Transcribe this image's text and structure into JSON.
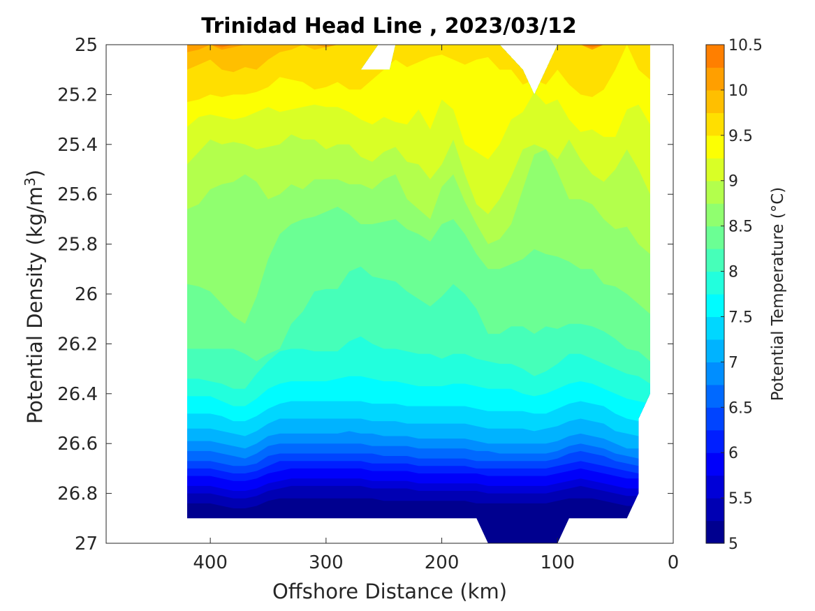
{
  "chart_data": {
    "type": "contourf",
    "title": "Trinidad Head Line , 2023/03/12",
    "xlabel": "Offshore Distance (km)",
    "ylabel": "Potential Density (kg/m³)",
    "ylabel_parts": {
      "main": "Potential Density (kg/m",
      "sup": "3",
      "end": ")"
    },
    "colorbar_label": "Potential Temperature (°C)",
    "xlim": [
      490,
      0
    ],
    "x_reversed": true,
    "ylim": [
      25,
      27
    ],
    "y_reversed": true,
    "xticks": [
      400,
      300,
      200,
      100,
      0
    ],
    "yticks": [
      25,
      25.2,
      25.4,
      25.6,
      25.8,
      26,
      26.2,
      26.4,
      26.6,
      26.8,
      27
    ],
    "colorbar_ticks": [
      5,
      5.5,
      6,
      6.5,
      7,
      7.5,
      8,
      8.5,
      9,
      9.5,
      10,
      10.5
    ],
    "clim": [
      5,
      10.5
    ],
    "levels": [
      5,
      5.25,
      5.5,
      5.75,
      6,
      6.25,
      6.5,
      6.75,
      7,
      7.25,
      7.5,
      7.75,
      8,
      8.25,
      8.5,
      8.75,
      9,
      9.25,
      9.5,
      9.75,
      10,
      10.25,
      10.5
    ],
    "level_colors": [
      "#00008f",
      "#0000b3",
      "#0000d7",
      "#0000fa",
      "#001fff",
      "#0044ff",
      "#0069ff",
      "#008eff",
      "#00b3ff",
      "#00d7ff",
      "#00fcff",
      "#22ffdd",
      "#46ffb9",
      "#6bff94",
      "#90ff6f",
      "#b3ff4c",
      "#d9ff26",
      "#fcff03",
      "#ffdf00",
      "#ffbf00",
      "#ff9f00",
      "#ff7f00",
      "#ff5f00",
      "#ff3f00",
      "#ff1f00",
      "#e60000",
      "#c00000",
      "#a00000",
      "#800000"
    ],
    "x": [
      420,
      410,
      400,
      390,
      380,
      370,
      360,
      350,
      340,
      330,
      320,
      310,
      300,
      290,
      280,
      270,
      260,
      250,
      240,
      230,
      220,
      210,
      200,
      190,
      180,
      170,
      160,
      150,
      140,
      130,
      120,
      110,
      100,
      90,
      80,
      70,
      60,
      50,
      40,
      30,
      20
    ],
    "isotherm_depths": [
      {
        "temperature": 10.25,
        "depths": [
          25.0,
          25.0,
          25.0,
          25.01,
          25.0,
          25.0,
          25.0,
          25.0,
          25.0,
          25.0,
          25.0,
          25.0,
          25.0,
          25.0,
          25.0,
          25.0,
          25.0,
          25.0,
          25.0,
          25.0,
          25.0,
          25.0,
          25.0,
          25.0,
          25.0,
          25.0,
          25.0,
          25.0,
          25.0,
          25.0,
          25.0,
          25.0,
          25.0,
          25.0,
          25.0,
          25.01,
          25.0,
          25.0,
          25.0,
          25.0,
          25.0
        ]
      },
      {
        "temperature": 10.0,
        "depths": [
          25.03,
          25.02,
          25.0,
          25.02,
          25.01,
          25.0,
          25.0,
          25.0,
          25.0,
          25.0,
          25.0,
          25.0,
          25.01,
          25.0,
          25.0,
          25.0,
          25.0,
          25.0,
          25.0,
          25.0,
          25.0,
          25.0,
          25.0,
          25.0,
          25.0,
          25.0,
          25.0,
          25.0,
          25.0,
          25.0,
          25.0,
          25.0,
          25.0,
          25.0,
          25.0,
          25.02,
          25.0,
          25.0,
          25.0,
          25.0,
          25.0
        ]
      },
      {
        "temperature": 9.75,
        "depths": [
          25.1,
          25.08,
          25.06,
          25.1,
          25.11,
          25.09,
          25.1,
          25.06,
          25.03,
          25.02,
          25.0,
          25.02,
          25.01,
          25.0,
          25.0,
          25.0,
          25.0,
          25.0,
          25.0,
          25.0,
          25.0,
          25.0,
          25.0,
          25.0,
          25.0,
          25.0,
          25.0,
          25.0,
          25.0,
          25.0,
          25.0,
          25.0,
          25.0,
          25.0,
          25.0,
          25.0,
          25.0,
          25.0,
          25.0,
          25.0,
          25.0
        ]
      },
      {
        "temperature": 9.5,
        "depths": [
          25.23,
          25.22,
          25.2,
          25.21,
          25.2,
          25.2,
          25.19,
          25.17,
          25.13,
          25.14,
          25.15,
          25.18,
          25.17,
          25.15,
          25.18,
          25.18,
          25.14,
          25.1,
          25.06,
          25.09,
          25.07,
          25.05,
          25.04,
          25.06,
          25.08,
          25.06,
          25.05,
          25.1,
          25.1,
          25.16,
          25.14,
          25.16,
          25.1,
          25.16,
          25.2,
          25.21,
          25.18,
          25.1,
          25.0,
          25.1,
          25.14
        ]
      },
      {
        "temperature": 9.25,
        "depths": [
          25.33,
          25.29,
          25.28,
          25.29,
          25.3,
          25.29,
          25.27,
          25.25,
          25.27,
          25.26,
          25.25,
          25.24,
          25.25,
          25.25,
          25.27,
          25.3,
          25.32,
          25.29,
          25.31,
          25.32,
          25.26,
          25.34,
          25.22,
          25.26,
          25.4,
          25.43,
          25.46,
          25.4,
          25.3,
          25.27,
          25.19,
          25.24,
          25.22,
          25.3,
          25.35,
          25.34,
          25.37,
          25.37,
          25.26,
          25.24,
          25.32
        ]
      },
      {
        "temperature": 9.0,
        "depths": [
          25.48,
          25.43,
          25.38,
          25.4,
          25.39,
          25.4,
          25.42,
          25.41,
          25.4,
          25.36,
          25.38,
          25.38,
          25.42,
          25.4,
          25.4,
          25.45,
          25.47,
          25.43,
          25.41,
          25.47,
          25.48,
          25.54,
          25.48,
          25.38,
          25.52,
          25.64,
          25.68,
          25.62,
          25.53,
          25.42,
          25.4,
          25.42,
          25.46,
          25.38,
          25.46,
          25.52,
          25.55,
          25.5,
          25.42,
          25.5,
          25.6
        ]
      },
      {
        "temperature": 8.75,
        "depths": [
          25.66,
          25.64,
          25.58,
          25.56,
          25.55,
          25.52,
          25.55,
          25.62,
          25.6,
          25.56,
          25.58,
          25.54,
          25.54,
          25.54,
          25.56,
          25.56,
          25.58,
          25.54,
          25.52,
          25.62,
          25.66,
          25.7,
          25.57,
          25.52,
          25.63,
          25.72,
          25.8,
          25.78,
          25.72,
          25.58,
          25.44,
          25.42,
          25.51,
          25.62,
          25.62,
          25.64,
          25.7,
          25.74,
          25.73,
          25.8,
          25.84
        ]
      },
      {
        "temperature": 8.5,
        "depths": [
          25.96,
          25.97,
          25.99,
          26.04,
          26.09,
          26.12,
          26.01,
          25.86,
          25.76,
          25.72,
          25.7,
          25.69,
          25.67,
          25.65,
          25.68,
          25.72,
          25.72,
          25.71,
          25.7,
          25.74,
          25.76,
          25.79,
          25.72,
          25.7,
          25.76,
          25.84,
          25.9,
          25.9,
          25.88,
          25.86,
          25.82,
          25.84,
          25.85,
          25.87,
          25.9,
          25.9,
          25.96,
          25.97,
          26.0,
          26.04,
          26.08
        ]
      },
      {
        "temperature": 8.25,
        "depths": [
          26.22,
          26.22,
          26.22,
          26.22,
          26.22,
          26.24,
          26.27,
          26.24,
          26.22,
          26.12,
          26.07,
          25.99,
          25.98,
          25.98,
          25.91,
          25.89,
          25.93,
          25.94,
          25.95,
          25.99,
          26.02,
          26.05,
          26.01,
          25.96,
          26.0,
          26.06,
          26.16,
          26.16,
          26.13,
          26.13,
          26.16,
          26.13,
          26.14,
          26.12,
          26.12,
          26.13,
          26.15,
          26.18,
          26.22,
          26.23,
          26.27
        ]
      },
      {
        "temperature": 8.0,
        "depths": [
          26.34,
          26.34,
          26.35,
          26.36,
          26.38,
          26.38,
          26.32,
          26.27,
          26.23,
          26.22,
          26.22,
          26.23,
          26.23,
          26.23,
          26.19,
          26.17,
          26.2,
          26.22,
          26.22,
          26.23,
          26.24,
          26.24,
          26.26,
          26.24,
          26.24,
          26.26,
          26.27,
          26.28,
          26.28,
          26.3,
          26.33,
          26.31,
          26.28,
          26.24,
          26.24,
          26.26,
          26.28,
          26.3,
          26.32,
          26.33,
          26.36
        ]
      },
      {
        "temperature": 7.75,
        "depths": [
          26.41,
          26.41,
          26.41,
          26.43,
          26.45,
          26.45,
          26.42,
          26.38,
          26.36,
          26.35,
          26.35,
          26.35,
          26.35,
          26.34,
          26.33,
          26.33,
          26.34,
          26.35,
          26.35,
          26.36,
          26.37,
          26.37,
          26.37,
          26.36,
          26.36,
          26.37,
          26.38,
          26.38,
          26.38,
          26.4,
          26.41,
          26.4,
          26.38,
          26.36,
          26.35,
          26.36,
          26.38,
          26.4,
          26.42,
          26.43,
          26.44
        ]
      },
      {
        "temperature": 7.5,
        "depths": [
          26.48,
          26.48,
          26.48,
          26.49,
          26.51,
          26.51,
          26.49,
          26.46,
          26.44,
          26.43,
          26.43,
          26.43,
          26.43,
          26.43,
          26.43,
          26.43,
          26.44,
          26.44,
          26.44,
          26.45,
          26.45,
          26.45,
          26.45,
          26.45,
          26.45,
          26.46,
          26.47,
          26.47,
          26.47,
          26.47,
          26.48,
          26.48,
          26.46,
          26.44,
          26.43,
          26.44,
          26.45,
          26.48,
          26.5,
          26.51,
          26.52
        ]
      },
      {
        "temperature": 7.25,
        "depths": [
          26.54,
          26.54,
          26.54,
          26.55,
          26.56,
          26.57,
          26.55,
          26.52,
          26.5,
          26.5,
          26.5,
          26.5,
          26.5,
          26.5,
          26.5,
          26.5,
          26.51,
          26.51,
          26.51,
          26.52,
          26.52,
          26.52,
          26.52,
          26.52,
          26.52,
          26.53,
          26.54,
          26.54,
          26.54,
          26.54,
          26.55,
          26.54,
          26.53,
          26.51,
          26.5,
          26.51,
          26.52,
          26.55,
          26.56,
          26.57,
          26.57
        ]
      },
      {
        "temperature": 7.0,
        "depths": [
          26.59,
          26.59,
          26.59,
          26.6,
          26.61,
          26.62,
          26.6,
          26.57,
          26.56,
          26.56,
          26.56,
          26.56,
          26.56,
          26.56,
          26.55,
          26.56,
          26.56,
          26.57,
          26.57,
          26.57,
          26.58,
          26.58,
          26.58,
          26.58,
          26.58,
          26.59,
          26.6,
          26.6,
          26.6,
          26.6,
          26.6,
          26.6,
          26.59,
          26.57,
          26.56,
          26.57,
          26.58,
          26.6,
          26.62,
          26.62,
          26.62
        ]
      },
      {
        "temperature": 6.75,
        "depths": [
          26.63,
          26.63,
          26.63,
          26.64,
          26.65,
          26.66,
          26.64,
          26.61,
          26.6,
          26.6,
          26.6,
          26.6,
          26.6,
          26.6,
          26.6,
          26.6,
          26.61,
          26.61,
          26.61,
          26.61,
          26.62,
          26.62,
          26.62,
          26.62,
          26.62,
          26.63,
          26.63,
          26.64,
          26.64,
          26.64,
          26.64,
          26.64,
          26.63,
          26.61,
          26.6,
          26.61,
          26.62,
          26.64,
          26.65,
          26.66,
          26.66
        ]
      },
      {
        "temperature": 6.5,
        "depths": [
          26.67,
          26.67,
          26.67,
          26.68,
          26.69,
          26.69,
          26.68,
          26.65,
          26.64,
          26.64,
          26.64,
          26.64,
          26.64,
          26.64,
          26.64,
          26.64,
          26.64,
          26.65,
          26.65,
          26.65,
          26.66,
          26.66,
          26.66,
          26.66,
          26.66,
          26.67,
          26.67,
          26.67,
          26.67,
          26.67,
          26.67,
          26.67,
          26.66,
          26.64,
          26.63,
          26.64,
          26.65,
          26.67,
          26.68,
          26.69,
          26.69
        ]
      },
      {
        "temperature": 6.25,
        "depths": [
          26.7,
          26.7,
          26.7,
          26.71,
          26.72,
          26.72,
          26.71,
          26.69,
          26.67,
          26.67,
          26.67,
          26.67,
          26.67,
          26.67,
          26.67,
          26.67,
          26.68,
          26.68,
          26.68,
          26.68,
          26.69,
          26.69,
          26.69,
          26.69,
          26.69,
          26.7,
          26.7,
          26.7,
          26.7,
          26.7,
          26.7,
          26.7,
          26.69,
          26.68,
          26.67,
          26.68,
          26.69,
          26.7,
          26.71,
          26.72,
          26.72
        ]
      },
      {
        "temperature": 6.0,
        "depths": [
          26.73,
          26.73,
          26.73,
          26.74,
          26.75,
          26.75,
          26.74,
          26.72,
          26.71,
          26.7,
          26.7,
          26.7,
          26.7,
          26.7,
          26.7,
          26.7,
          26.71,
          26.71,
          26.71,
          26.71,
          26.72,
          26.72,
          26.72,
          26.72,
          26.72,
          26.72,
          26.73,
          26.73,
          26.73,
          26.73,
          26.73,
          26.73,
          26.72,
          26.71,
          26.7,
          26.71,
          26.72,
          26.73,
          26.74,
          26.74,
          26.75
        ]
      },
      {
        "temperature": 5.75,
        "depths": [
          26.77,
          26.77,
          26.77,
          26.78,
          26.79,
          26.79,
          26.78,
          26.76,
          26.75,
          26.74,
          26.74,
          26.74,
          26.74,
          26.74,
          26.74,
          26.74,
          26.75,
          26.75,
          26.75,
          26.75,
          26.76,
          26.76,
          26.76,
          26.76,
          26.76,
          26.76,
          26.77,
          26.77,
          26.77,
          26.77,
          26.77,
          26.77,
          26.76,
          26.75,
          26.74,
          26.75,
          26.76,
          26.77,
          26.78,
          26.78,
          26.79
        ]
      },
      {
        "temperature": 5.5,
        "depths": [
          26.8,
          26.8,
          26.8,
          26.81,
          26.82,
          26.82,
          26.81,
          26.79,
          26.78,
          26.77,
          26.77,
          26.77,
          26.77,
          26.77,
          26.77,
          26.77,
          26.78,
          26.78,
          26.78,
          26.78,
          26.79,
          26.79,
          26.79,
          26.79,
          26.79,
          26.79,
          26.8,
          26.8,
          26.8,
          26.8,
          26.8,
          26.8,
          26.79,
          26.78,
          26.77,
          26.78,
          26.79,
          26.8,
          26.81,
          26.81,
          26.82
        ]
      },
      {
        "temperature": 5.25,
        "depths": [
          26.84,
          26.84,
          26.84,
          26.85,
          26.86,
          26.86,
          26.85,
          26.83,
          26.82,
          26.82,
          26.82,
          26.82,
          26.82,
          26.82,
          26.82,
          26.82,
          26.82,
          26.83,
          26.83,
          26.83,
          26.83,
          26.83,
          26.83,
          26.83,
          26.83,
          26.84,
          26.84,
          26.84,
          26.84,
          26.84,
          26.84,
          26.84,
          26.83,
          26.82,
          26.82,
          26.82,
          26.83,
          26.84,
          26.85,
          26.85,
          26.86
        ]
      }
    ],
    "data_boundary": [
      {
        "x": 420,
        "y": 25.0
      },
      {
        "x": 255,
        "y": 25.0
      },
      {
        "x": 270,
        "y": 25.1
      },
      {
        "x": 245,
        "y": 25.1
      },
      {
        "x": 240,
        "y": 25.0
      },
      {
        "x": 150,
        "y": 25.0
      },
      {
        "x": 130,
        "y": 25.1
      },
      {
        "x": 120,
        "y": 25.2
      },
      {
        "x": 100,
        "y": 25.0
      },
      {
        "x": 20,
        "y": 25.0
      },
      {
        "x": 20,
        "y": 26.4
      },
      {
        "x": 30,
        "y": 26.5
      },
      {
        "x": 30,
        "y": 26.8
      },
      {
        "x": 40,
        "y": 26.9
      },
      {
        "x": 90,
        "y": 26.9
      },
      {
        "x": 100,
        "y": 27.0
      },
      {
        "x": 160,
        "y": 27.0
      },
      {
        "x": 170,
        "y": 26.9
      },
      {
        "x": 420,
        "y": 26.9
      }
    ],
    "grid": false,
    "colorbar": "right"
  }
}
